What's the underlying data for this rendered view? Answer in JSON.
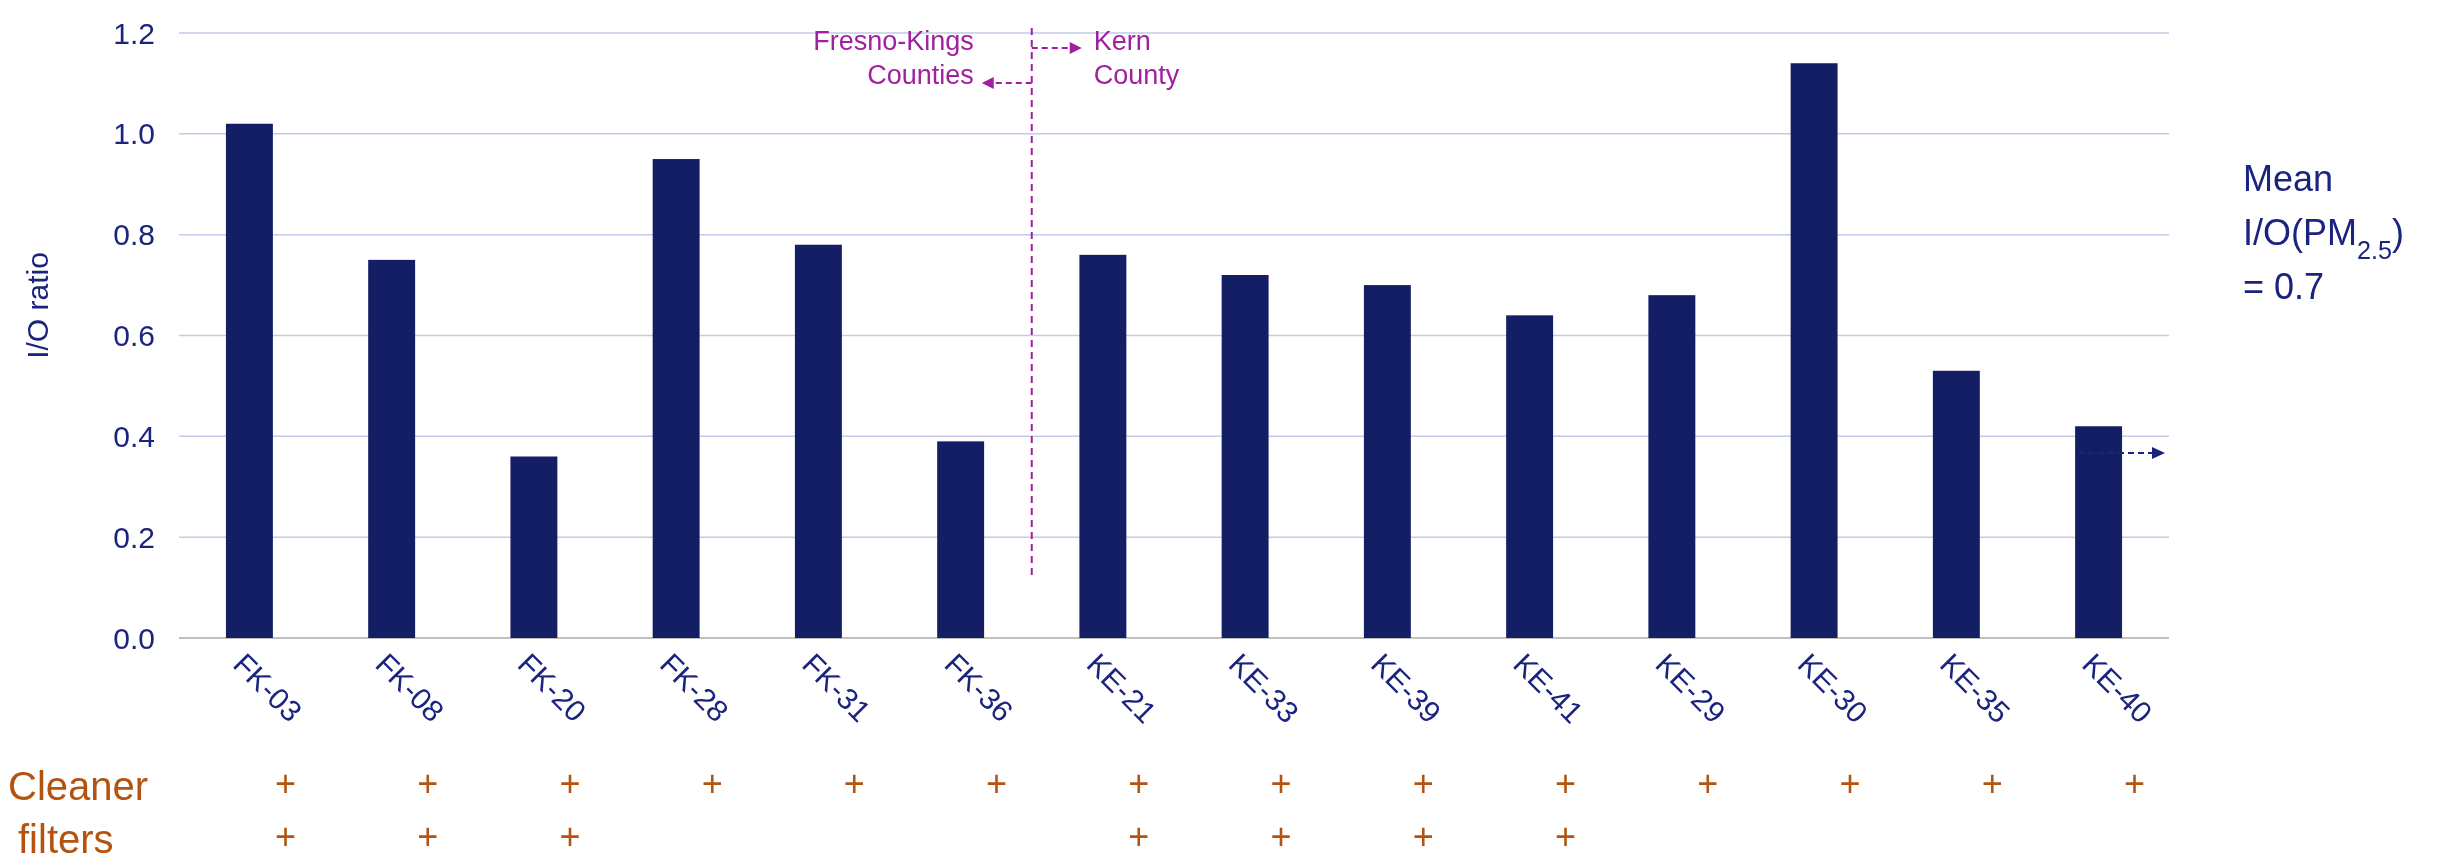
{
  "chart_data": {
    "type": "bar",
    "ylabel": "I/O ratio",
    "categories": [
      "FK-03",
      "FK-08",
      "FK-20",
      "FK-28",
      "FK-31",
      "FK-36",
      "KE-21",
      "KE-33",
      "KE-39",
      "KE-41",
      "KE-29",
      "KE-30",
      "KE-35",
      "KE-40"
    ],
    "values": [
      1.02,
      0.75,
      0.36,
      0.95,
      0.78,
      0.39,
      0.76,
      0.72,
      0.7,
      0.64,
      0.68,
      1.14,
      0.53,
      0.42
    ],
    "color": "#141e64",
    "ylim": [
      0,
      1.2
    ],
    "yticks": [
      {
        "value": 0,
        "label": "0.0"
      },
      {
        "value": 0.2,
        "label": "0.2"
      },
      {
        "value": 0.4,
        "label": "0.4"
      },
      {
        "value": 0.6,
        "label": "0.6"
      },
      {
        "value": 0.8,
        "label": "0.8"
      },
      {
        "value": 1,
        "label": "1.0"
      },
      {
        "value": 1.2,
        "label": "1.2"
      }
    ],
    "grid": "y",
    "annotations": [
      "Fresno-Kings Counties",
      "Kern County",
      "Mean I/O(PM$_{2.5}$) = 0.7",
      "Cleaner",
      "filters",
      "+",
      "+",
      "+",
      "+",
      "+",
      "+",
      "+",
      "+",
      "+",
      "+",
      "+",
      "+",
      "+",
      "+",
      "+",
      "+",
      "+",
      "+",
      "+",
      "+",
      "+"
    ]
  }
}
